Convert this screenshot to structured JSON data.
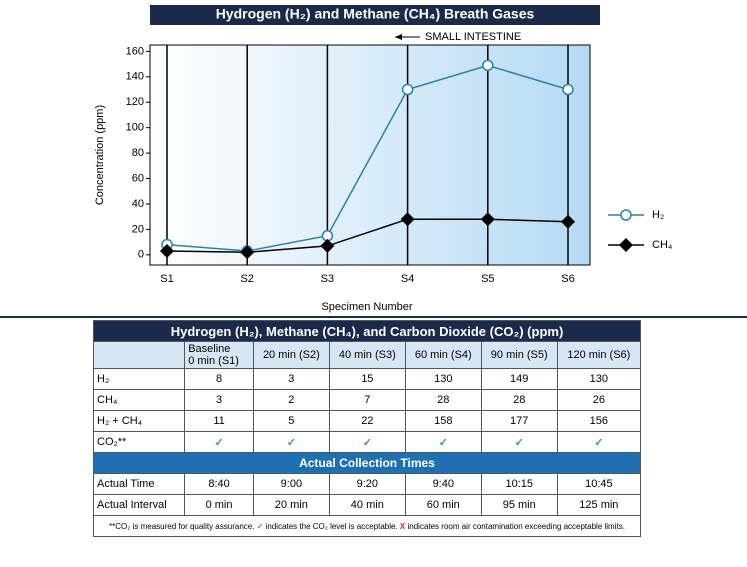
{
  "chart_data": {
    "type": "line",
    "title": "Hydrogen (H₂) and Methane (CH₄) Breath Gases",
    "annotation": "SMALL INTESTINE",
    "xlabel": "Specimen Number",
    "ylabel": "Concentration (ppm)",
    "categories": [
      "S1",
      "S2",
      "S3",
      "S4",
      "S5",
      "S6"
    ],
    "series": [
      {
        "name": "H₂",
        "color": "#2b80a8",
        "marker": "circle",
        "values": [
          8,
          3,
          15,
          130,
          149,
          130
        ]
      },
      {
        "name": "CH₄",
        "color": "#000000",
        "marker": "diamond",
        "values": [
          3,
          2,
          7,
          28,
          28,
          26
        ]
      }
    ],
    "ylim": [
      -8,
      165
    ],
    "yticks": [
      0,
      20,
      40,
      60,
      80,
      100,
      120,
      140,
      160
    ]
  },
  "table": {
    "title": "Hydrogen (H₂), Methane (CH₄), and Carbon Dioxide (CO₂) (ppm)",
    "columns": [
      "Baseline\n0 min (S1)",
      "20 min (S2)",
      "40 min (S3)",
      "60 min (S4)",
      "90 min (S5)",
      "120 min (S6)"
    ],
    "rows": [
      {
        "label": "H₂",
        "cells": [
          8,
          3,
          15,
          130,
          149,
          130
        ]
      },
      {
        "label": "CH₄",
        "cells": [
          3,
          2,
          7,
          28,
          28,
          26
        ]
      },
      {
        "label": "H₂ + CH₄",
        "cells": [
          11,
          5,
          22,
          158,
          177,
          156
        ]
      },
      {
        "label": "CO₂**",
        "cells": [
          "✓",
          "✓",
          "✓",
          "✓",
          "✓",
          "✓"
        ]
      }
    ],
    "section": "Actual Collection Times",
    "times": [
      {
        "label": "Actual Time",
        "cells": [
          "8:40",
          "9:00",
          "9:20",
          "9:40",
          "10:15",
          "10:45"
        ]
      },
      {
        "label": "Actual Interval",
        "cells": [
          "0 min",
          "20 min",
          "40 min",
          "60 min",
          "95 min",
          "125 min"
        ]
      }
    ],
    "note": [
      "**CO₂ is measured for quality assurance.",
      "✓",
      "indicates the CO₂ level is acceptable.",
      "X",
      "indicates room air contamination exceeding acceptable limits."
    ]
  }
}
